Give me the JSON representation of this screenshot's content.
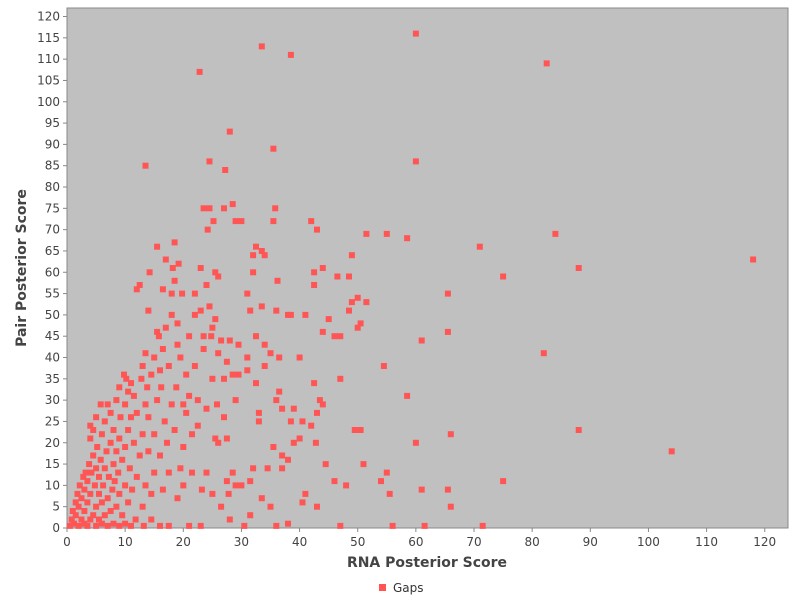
{
  "chart_data": {
    "type": "scatter",
    "title": "",
    "xlabel": "RNA Posterior Score",
    "ylabel": "Pair Posterior Score",
    "xlim": [
      0,
      124
    ],
    "ylim": [
      0,
      122
    ],
    "x_ticks": [
      0,
      10,
      20,
      30,
      40,
      50,
      60,
      70,
      80,
      90,
      100,
      110,
      120
    ],
    "y_ticks": [
      0,
      5,
      10,
      15,
      20,
      25,
      30,
      35,
      40,
      45,
      50,
      55,
      60,
      65,
      70,
      75,
      80,
      85,
      90,
      95,
      100,
      105,
      110,
      115,
      120
    ],
    "grid": false,
    "legend_position": "bottom-center",
    "plot_background": "#c0c0c0",
    "series": [
      {
        "name": "Gaps",
        "color": "#ff5555",
        "marker": "square",
        "points": [
          [
            0.5,
            0.5
          ],
          [
            0.8,
            2
          ],
          [
            1,
            4
          ],
          [
            1.2,
            1
          ],
          [
            1.5,
            6
          ],
          [
            1.5,
            3
          ],
          [
            1.8,
            8
          ],
          [
            2,
            0.5
          ],
          [
            2,
            5
          ],
          [
            2.2,
            10
          ],
          [
            2.5,
            2
          ],
          [
            2.5,
            7
          ],
          [
            2.8,
            12
          ],
          [
            3,
            1
          ],
          [
            3,
            4
          ],
          [
            3,
            9
          ],
          [
            3.2,
            13
          ],
          [
            3.5,
            0.5
          ],
          [
            3.5,
            6
          ],
          [
            3.5,
            11
          ],
          [
            3.8,
            15
          ],
          [
            4,
            2
          ],
          [
            4,
            8
          ],
          [
            4,
            24
          ],
          [
            4,
            21
          ],
          [
            4.2,
            13
          ],
          [
            4.5,
            3
          ],
          [
            4.5,
            17
          ],
          [
            4.5,
            23
          ],
          [
            4.8,
            10
          ],
          [
            5,
            0.5
          ],
          [
            5,
            5
          ],
          [
            5,
            14
          ],
          [
            5,
            26
          ],
          [
            5.2,
            19
          ],
          [
            5.5,
            2
          ],
          [
            5.5,
            8
          ],
          [
            5.5,
            12
          ],
          [
            5.8,
            16
          ],
          [
            5.8,
            29
          ],
          [
            6,
            1
          ],
          [
            6,
            6
          ],
          [
            6,
            22
          ],
          [
            6.2,
            10
          ],
          [
            6.5,
            3
          ],
          [
            6.5,
            14
          ],
          [
            6.5,
            25
          ],
          [
            6.8,
            18
          ],
          [
            7,
            0.5
          ],
          [
            7,
            7
          ],
          [
            7,
            29
          ],
          [
            7.2,
            12
          ],
          [
            7.5,
            4
          ],
          [
            7.5,
            20
          ],
          [
            7.5,
            27
          ],
          [
            7.8,
            9
          ],
          [
            8,
            1
          ],
          [
            8,
            15
          ],
          [
            8,
            23
          ],
          [
            8.2,
            11
          ],
          [
            8.5,
            5
          ],
          [
            8.5,
            18
          ],
          [
            8.5,
            30
          ],
          [
            8.8,
            13
          ],
          [
            9,
            0.5
          ],
          [
            9,
            8
          ],
          [
            9,
            21
          ],
          [
            9,
            33
          ],
          [
            9.2,
            26
          ],
          [
            9.5,
            3
          ],
          [
            9.5,
            16
          ],
          [
            9.8,
            36
          ],
          [
            10,
            1
          ],
          [
            10,
            10
          ],
          [
            10,
            19
          ],
          [
            10,
            29
          ],
          [
            10.2,
            35
          ],
          [
            10.5,
            6
          ],
          [
            10.5,
            23
          ],
          [
            10.5,
            32
          ],
          [
            10.8,
            14
          ],
          [
            11,
            0.5
          ],
          [
            11,
            26
          ],
          [
            11,
            34
          ],
          [
            11.2,
            9
          ],
          [
            11.5,
            20
          ],
          [
            11.5,
            31
          ],
          [
            11.8,
            2
          ],
          [
            12,
            12
          ],
          [
            12,
            27
          ],
          [
            12,
            56
          ],
          [
            12.5,
            57
          ],
          [
            12.5,
            17
          ],
          [
            12.8,
            35
          ],
          [
            13,
            5
          ],
          [
            13,
            22
          ],
          [
            13,
            38
          ],
          [
            13.2,
            0.5
          ],
          [
            13.5,
            10
          ],
          [
            13.5,
            29
          ],
          [
            13.5,
            85
          ],
          [
            13.5,
            41
          ],
          [
            13.8,
            33
          ],
          [
            14,
            18
          ],
          [
            14,
            26
          ],
          [
            14,
            51
          ],
          [
            14.2,
            60
          ],
          [
            14.5,
            2
          ],
          [
            14.5,
            36
          ],
          [
            14.5,
            8
          ],
          [
            15,
            13
          ],
          [
            15,
            40
          ],
          [
            15,
            22
          ],
          [
            15.5,
            46
          ],
          [
            15.5,
            30
          ],
          [
            15.5,
            66
          ],
          [
            15.8,
            45
          ],
          [
            16,
            0.5
          ],
          [
            16,
            17
          ],
          [
            16,
            37
          ],
          [
            16.2,
            33
          ],
          [
            16.5,
            9
          ],
          [
            16.5,
            42
          ],
          [
            16.5,
            56
          ],
          [
            16.8,
            25
          ],
          [
            17,
            63
          ],
          [
            17,
            47
          ],
          [
            17.2,
            20
          ],
          [
            17.5,
            0.5
          ],
          [
            17.5,
            38
          ],
          [
            17.5,
            13
          ],
          [
            18,
            29
          ],
          [
            18,
            55
          ],
          [
            18,
            50
          ],
          [
            18.2,
            61
          ],
          [
            18.5,
            23
          ],
          [
            18.5,
            58
          ],
          [
            18.5,
            67
          ],
          [
            18.8,
            33
          ],
          [
            19,
            7
          ],
          [
            19,
            43
          ],
          [
            19,
            48
          ],
          [
            19.2,
            62
          ],
          [
            19.5,
            14
          ],
          [
            19.5,
            40
          ],
          [
            19.8,
            55
          ],
          [
            20,
            29
          ],
          [
            20,
            10
          ],
          [
            20,
            19
          ],
          [
            20.5,
            27
          ],
          [
            20.5,
            36
          ],
          [
            21,
            0.5
          ],
          [
            21,
            45
          ],
          [
            21,
            31
          ],
          [
            21.5,
            13
          ],
          [
            21.5,
            22
          ],
          [
            22,
            55
          ],
          [
            22,
            50
          ],
          [
            22,
            38
          ],
          [
            22.5,
            24
          ],
          [
            22.5,
            30
          ],
          [
            22.8,
            107
          ],
          [
            23,
            51
          ],
          [
            23,
            61
          ],
          [
            23,
            0.5
          ],
          [
            23.2,
            9
          ],
          [
            23.5,
            75
          ],
          [
            23.5,
            45
          ],
          [
            23.5,
            42
          ],
          [
            24,
            13
          ],
          [
            24,
            28
          ],
          [
            24,
            57
          ],
          [
            24.2,
            70
          ],
          [
            24.5,
            52
          ],
          [
            24.5,
            75
          ],
          [
            24.5,
            86
          ],
          [
            24.8,
            45
          ],
          [
            25,
            47
          ],
          [
            25,
            35
          ],
          [
            25,
            8
          ],
          [
            25.2,
            72
          ],
          [
            25.5,
            49
          ],
          [
            25.5,
            60
          ],
          [
            25.5,
            21
          ],
          [
            25.8,
            29
          ],
          [
            26,
            41
          ],
          [
            26,
            59
          ],
          [
            26,
            20
          ],
          [
            26.5,
            5
          ],
          [
            26.5,
            44
          ],
          [
            27,
            75
          ],
          [
            27,
            35
          ],
          [
            27,
            26
          ],
          [
            27.2,
            84
          ],
          [
            27.5,
            39
          ],
          [
            27.5,
            21
          ],
          [
            27.5,
            11
          ],
          [
            27.8,
            8
          ],
          [
            28,
            93
          ],
          [
            28,
            44
          ],
          [
            28,
            2
          ],
          [
            28.5,
            76
          ],
          [
            28.5,
            36
          ],
          [
            28.5,
            13
          ],
          [
            29,
            72
          ],
          [
            29,
            30
          ],
          [
            29,
            10
          ],
          [
            29.5,
            43
          ],
          [
            29.5,
            36
          ],
          [
            30,
            72
          ],
          [
            30,
            10
          ],
          [
            30.5,
            0.5
          ],
          [
            31,
            55
          ],
          [
            31,
            40
          ],
          [
            31,
            37
          ],
          [
            31.5,
            51
          ],
          [
            31.5,
            11
          ],
          [
            31.5,
            3
          ],
          [
            32,
            64
          ],
          [
            32,
            60
          ],
          [
            32,
            14
          ],
          [
            32.5,
            66
          ],
          [
            32.5,
            45
          ],
          [
            32.5,
            34
          ],
          [
            33,
            27
          ],
          [
            33,
            25
          ],
          [
            33.5,
            113
          ],
          [
            33.5,
            65
          ],
          [
            33.5,
            52
          ],
          [
            33.5,
            7
          ],
          [
            34,
            64
          ],
          [
            34,
            43
          ],
          [
            34,
            38
          ],
          [
            34.5,
            14
          ],
          [
            35,
            41
          ],
          [
            35,
            5
          ],
          [
            35.5,
            89
          ],
          [
            35.5,
            72
          ],
          [
            35.5,
            19
          ],
          [
            35.8,
            75
          ],
          [
            36,
            51
          ],
          [
            36,
            30
          ],
          [
            36,
            0.5
          ],
          [
            36.2,
            58
          ],
          [
            36.5,
            40
          ],
          [
            36.5,
            32
          ],
          [
            37,
            28
          ],
          [
            37,
            17
          ],
          [
            37,
            14
          ],
          [
            38,
            50
          ],
          [
            38,
            16
          ],
          [
            38,
            1
          ],
          [
            38.5,
            111
          ],
          [
            38.5,
            50
          ],
          [
            38.5,
            25
          ],
          [
            39,
            28
          ],
          [
            39,
            20
          ],
          [
            40,
            40
          ],
          [
            40,
            21
          ],
          [
            40.5,
            25
          ],
          [
            40.5,
            6
          ],
          [
            41,
            50
          ],
          [
            41,
            8
          ],
          [
            42,
            72
          ],
          [
            42,
            24
          ],
          [
            42.5,
            60
          ],
          [
            42.5,
            57
          ],
          [
            42.5,
            34
          ],
          [
            42.8,
            20
          ],
          [
            43,
            70
          ],
          [
            43,
            27
          ],
          [
            43,
            5
          ],
          [
            43.5,
            30
          ],
          [
            44,
            61
          ],
          [
            44,
            46
          ],
          [
            44,
            29
          ],
          [
            44.5,
            15
          ],
          [
            45,
            49
          ],
          [
            46,
            45
          ],
          [
            46,
            11
          ],
          [
            46.5,
            59
          ],
          [
            47,
            45
          ],
          [
            47,
            35
          ],
          [
            47,
            0.5
          ],
          [
            48,
            10
          ],
          [
            48.5,
            51
          ],
          [
            48.5,
            59
          ],
          [
            49,
            64
          ],
          [
            49,
            53
          ],
          [
            49.5,
            23
          ],
          [
            50,
            54
          ],
          [
            50,
            47
          ],
          [
            50.5,
            48
          ],
          [
            50.5,
            23
          ],
          [
            51,
            15
          ],
          [
            51.5,
            69
          ],
          [
            51.5,
            53
          ],
          [
            54,
            11
          ],
          [
            54.5,
            38
          ],
          [
            55,
            69
          ],
          [
            55,
            13
          ],
          [
            55.5,
            8
          ],
          [
            56,
            0.5
          ],
          [
            58.5,
            68
          ],
          [
            58.5,
            31
          ],
          [
            60,
            86
          ],
          [
            60,
            116
          ],
          [
            60,
            20
          ],
          [
            61,
            44
          ],
          [
            61,
            9
          ],
          [
            61.5,
            0.5
          ],
          [
            65.5,
            55
          ],
          [
            65.5,
            46
          ],
          [
            65.5,
            9
          ],
          [
            66,
            22
          ],
          [
            66,
            5
          ],
          [
            71,
            66
          ],
          [
            71.5,
            0.5
          ],
          [
            75,
            59
          ],
          [
            75,
            11
          ],
          [
            82,
            41
          ],
          [
            82.5,
            109
          ],
          [
            84,
            69
          ],
          [
            88,
            61
          ],
          [
            88,
            23
          ],
          [
            104,
            18
          ],
          [
            118,
            63
          ]
        ]
      }
    ]
  }
}
